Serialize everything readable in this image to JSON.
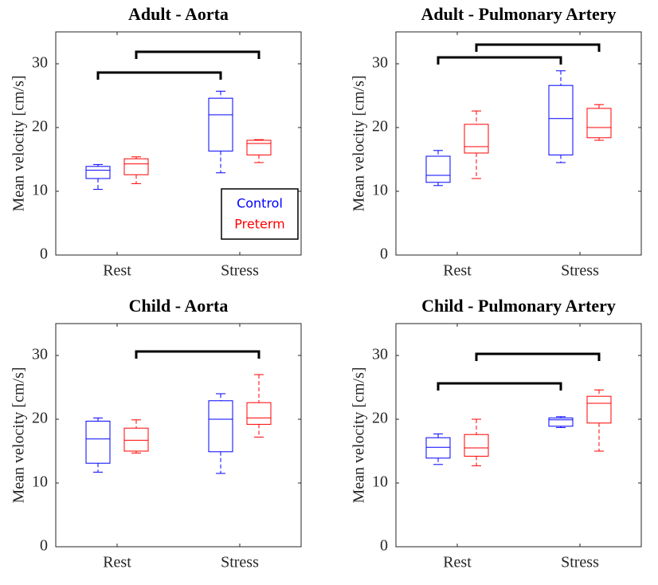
{
  "chart_data": [
    {
      "type": "box",
      "title": "Adult - Aorta",
      "ylabel": "Mean velocity [cm/s]",
      "categories": [
        "Rest",
        "Stress"
      ],
      "ylim": [
        0,
        35
      ],
      "yticks": [
        0,
        10,
        20,
        30
      ],
      "legend": "lower right",
      "series": [
        {
          "name": "Control",
          "color": "#0000ff",
          "min": [
            10.3,
            12.9
          ],
          "q1": [
            12.0,
            16.3
          ],
          "median": [
            13.3,
            22.0
          ],
          "q3": [
            13.9,
            24.6
          ],
          "max": [
            14.2,
            25.7
          ]
        },
        {
          "name": "Preterm",
          "color": "#ff0000",
          "min": [
            11.2,
            14.5
          ],
          "q1": [
            12.6,
            15.7
          ],
          "median": [
            14.3,
            17.5
          ],
          "q3": [
            15.1,
            18.0
          ],
          "max": [
            15.4,
            18.1
          ]
        }
      ]
    },
    {
      "type": "box",
      "title": "Adult - Pulmonary Artery",
      "ylabel": "Mean velocity [cm/s]",
      "categories": [
        "Rest",
        "Stress"
      ],
      "ylim": [
        0,
        35
      ],
      "yticks": [
        0,
        10,
        20,
        30
      ],
      "series": [
        {
          "color": "#0000ff",
          "min": [
            10.9,
            14.5
          ],
          "q1": [
            11.4,
            15.7
          ],
          "median": [
            12.5,
            21.4
          ],
          "q3": [
            15.5,
            26.6
          ],
          "max": [
            16.4,
            28.9
          ]
        },
        {
          "color": "#ff0000",
          "min": [
            12.0,
            18.0
          ],
          "q1": [
            16.0,
            18.4
          ],
          "median": [
            17.0,
            20.0
          ],
          "q3": [
            20.5,
            23.0
          ],
          "max": [
            22.6,
            23.6
          ]
        }
      ]
    },
    {
      "type": "box",
      "title": "Child - Aorta",
      "ylabel": "Mean velocity [cm/s]",
      "categories": [
        "Rest",
        "Stress"
      ],
      "ylim": [
        0,
        35
      ],
      "yticks": [
        0,
        10,
        20,
        30
      ],
      "series": [
        {
          "color": "#0000ff",
          "min": [
            11.7,
            11.5
          ],
          "q1": [
            13.1,
            14.9
          ],
          "median": [
            16.9,
            20.0
          ],
          "q3": [
            19.7,
            22.9
          ],
          "max": [
            20.2,
            24.0
          ]
        },
        {
          "color": "#ff0000",
          "min": [
            14.7,
            17.2
          ],
          "q1": [
            15.0,
            19.2
          ],
          "median": [
            16.7,
            20.2
          ],
          "q3": [
            18.6,
            22.6
          ],
          "max": [
            19.9,
            27.0
          ]
        }
      ]
    },
    {
      "type": "box",
      "title": "Child - Pulmonary Artery",
      "ylabel": "Mean velocity [cm/s]",
      "categories": [
        "Rest",
        "Stress"
      ],
      "ylim": [
        0,
        35
      ],
      "yticks": [
        0,
        10,
        20,
        30
      ],
      "series": [
        {
          "color": "#0000ff",
          "min": [
            12.9,
            18.7
          ],
          "q1": [
            13.9,
            18.9
          ],
          "median": [
            15.6,
            19.9
          ],
          "q3": [
            17.1,
            20.2
          ],
          "max": [
            17.7,
            20.4
          ]
        },
        {
          "color": "#ff0000",
          "min": [
            12.7,
            15.0
          ],
          "q1": [
            14.2,
            19.4
          ],
          "median": [
            15.5,
            22.5
          ],
          "q3": [
            17.6,
            23.6
          ],
          "max": [
            20.0,
            24.6
          ]
        }
      ]
    }
  ]
}
